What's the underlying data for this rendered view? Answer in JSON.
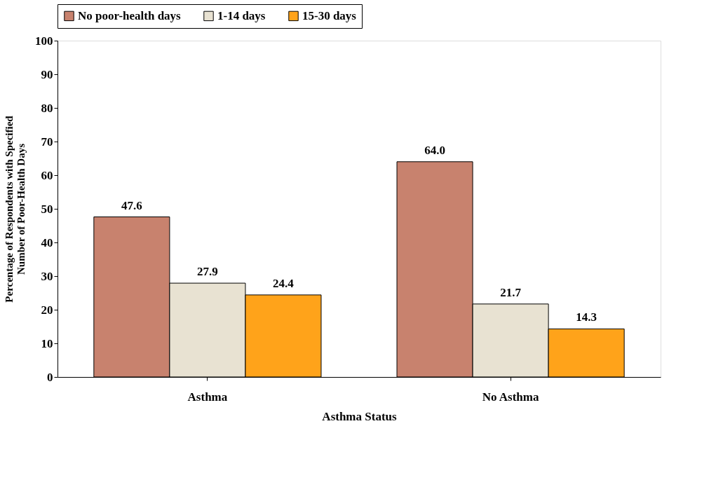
{
  "chart_data": {
    "type": "bar",
    "xlabel": "Asthma Status",
    "ylabel": "Percentage of Respondents with Specified Number of Poor-Health Days",
    "categories": [
      "Asthma",
      "No Asthma"
    ],
    "series": [
      {
        "name": "No poor-health days",
        "color": "#c8826e",
        "values": [
          47.6,
          64.0
        ],
        "value_labels": [
          "47.6",
          "64.0"
        ]
      },
      {
        "name": "1-14 days",
        "color": "#e8e2d2",
        "values": [
          27.9,
          21.7
        ],
        "value_labels": [
          "27.9",
          "21.7"
        ]
      },
      {
        "name": "15-30 days",
        "color": "#ffa31a",
        "values": [
          24.4,
          14.3
        ],
        "value_labels": [
          "24.4",
          "14.3"
        ]
      }
    ],
    "ylim": [
      0,
      100
    ],
    "yticks": [
      0,
      10,
      20,
      30,
      40,
      50,
      60,
      70,
      80,
      90,
      100
    ],
    "grid": false,
    "legend": "top"
  }
}
